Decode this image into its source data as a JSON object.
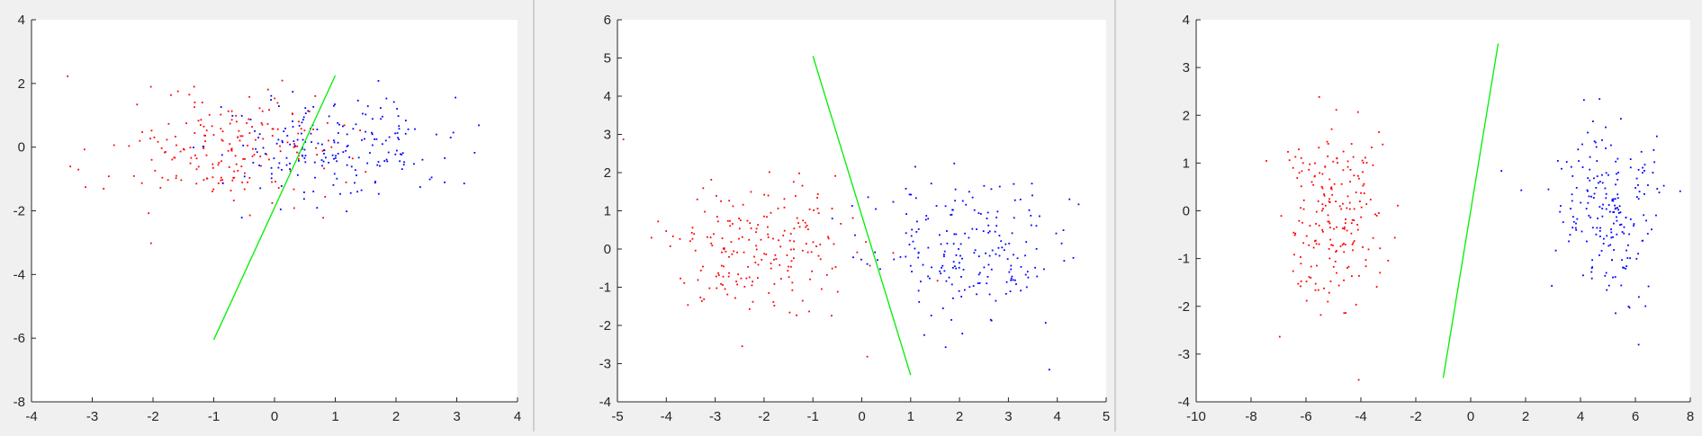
{
  "colors": {
    "class_a": "#ff0000",
    "class_b": "#0000ff",
    "boundary": "#00ee00",
    "axes": "#262626",
    "plot_bg": "#ffffff",
    "figure_bg": "#f0f0f0"
  },
  "chart_data": [
    {
      "type": "scatter",
      "title": "",
      "xlabel": "",
      "ylabel": "",
      "xlim": [
        -4,
        4
      ],
      "ylim": [
        -8,
        4
      ],
      "xticks": [
        "-4",
        "-3",
        "-2",
        "-1",
        "0",
        "1",
        "2",
        "3",
        "4"
      ],
      "yticks": [
        "-8",
        "-6",
        "-4",
        "-2",
        "0",
        "2",
        "4"
      ],
      "grid": false,
      "clusters": [
        {
          "color": "class_a",
          "mean": [
            -0.9,
            -0.15
          ],
          "std": [
            0.9,
            0.9
          ],
          "n": 200
        },
        {
          "color": "class_b",
          "mean": [
            1.0,
            -0.05
          ],
          "std": [
            0.95,
            0.85
          ],
          "n": 200
        }
      ],
      "boundary_line": {
        "x": [
          -1.0,
          1.0
        ],
        "y": [
          -6.05,
          2.25
        ]
      }
    },
    {
      "type": "scatter",
      "title": "",
      "xlabel": "",
      "ylabel": "",
      "xlim": [
        -5,
        5
      ],
      "ylim": [
        -4,
        6
      ],
      "xticks": [
        "-5",
        "-4",
        "-3",
        "-2",
        "-1",
        "0",
        "1",
        "2",
        "3",
        "4",
        "5"
      ],
      "yticks": [
        "-4",
        "-3",
        "-2",
        "-1",
        "0",
        "1",
        "2",
        "3",
        "4",
        "5",
        "6"
      ],
      "grid": false,
      "clusters": [
        {
          "color": "class_a",
          "mean": [
            -2.0,
            0.0
          ],
          "std": [
            1.0,
            0.95
          ],
          "n": 200
        },
        {
          "color": "class_b",
          "mean": [
            2.0,
            -0.1
          ],
          "std": [
            1.0,
            0.95
          ],
          "n": 200
        }
      ],
      "boundary_line": {
        "x": [
          -1.0,
          1.0
        ],
        "y": [
          5.05,
          -3.3
        ]
      }
    },
    {
      "type": "scatter",
      "title": "",
      "xlabel": "",
      "ylabel": "",
      "xlim": [
        -10,
        8
      ],
      "ylim": [
        -4,
        4
      ],
      "xticks": [
        "-10",
        "-8",
        "-6",
        "-4",
        "-2",
        "0",
        "2",
        "4",
        "6",
        "8"
      ],
      "yticks": [
        "-4",
        "-3",
        "-2",
        "-1",
        "0",
        "1",
        "2",
        "3",
        "4"
      ],
      "grid": false,
      "clusters": [
        {
          "color": "class_a",
          "mean": [
            -5.0,
            0.0
          ],
          "std": [
            0.9,
            0.95
          ],
          "n": 200
        },
        {
          "color": "class_b",
          "mean": [
            5.0,
            0.0
          ],
          "std": [
            0.9,
            0.95
          ],
          "n": 200
        }
      ],
      "boundary_line": {
        "x": [
          -1.0,
          1.0
        ],
        "y": [
          -3.5,
          3.5
        ]
      }
    }
  ]
}
